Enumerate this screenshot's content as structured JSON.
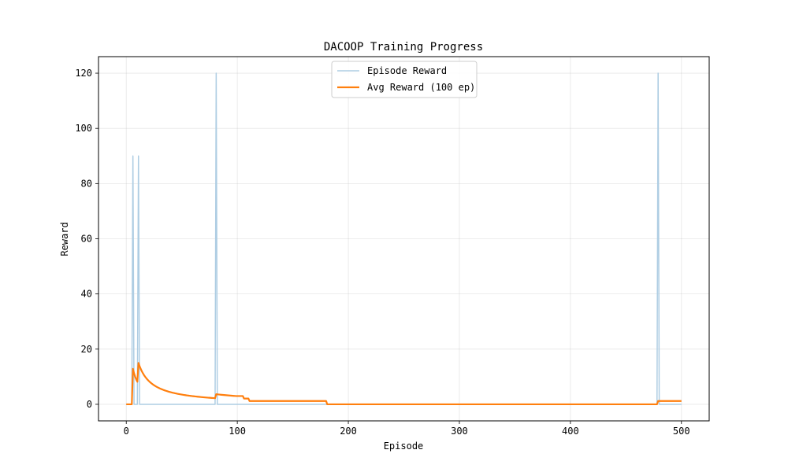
{
  "chart_data": {
    "type": "line",
    "title": "DACOOP Training Progress",
    "xlabel": "Episode",
    "ylabel": "Reward",
    "xlim": [
      -25,
      525
    ],
    "ylim": [
      -6,
      126
    ],
    "x_ticks": [
      0,
      100,
      200,
      300,
      400,
      500
    ],
    "y_ticks": [
      0,
      20,
      40,
      60,
      80,
      100,
      120
    ],
    "grid": true,
    "legend_position": "top-center",
    "episode_count": 500,
    "series": [
      {
        "name": "Episode Reward",
        "color": "#aecde3",
        "style": "thin",
        "default_value": 0,
        "spikes": [
          {
            "x": 6,
            "y": 90
          },
          {
            "x": 11,
            "y": 90
          },
          {
            "x": 81,
            "y": 120
          },
          {
            "x": 479,
            "y": 120
          }
        ]
      },
      {
        "name": "Avg Reward (100 ep)",
        "color": "#ff7f0e",
        "style": "thick",
        "window": 100
      }
    ]
  }
}
